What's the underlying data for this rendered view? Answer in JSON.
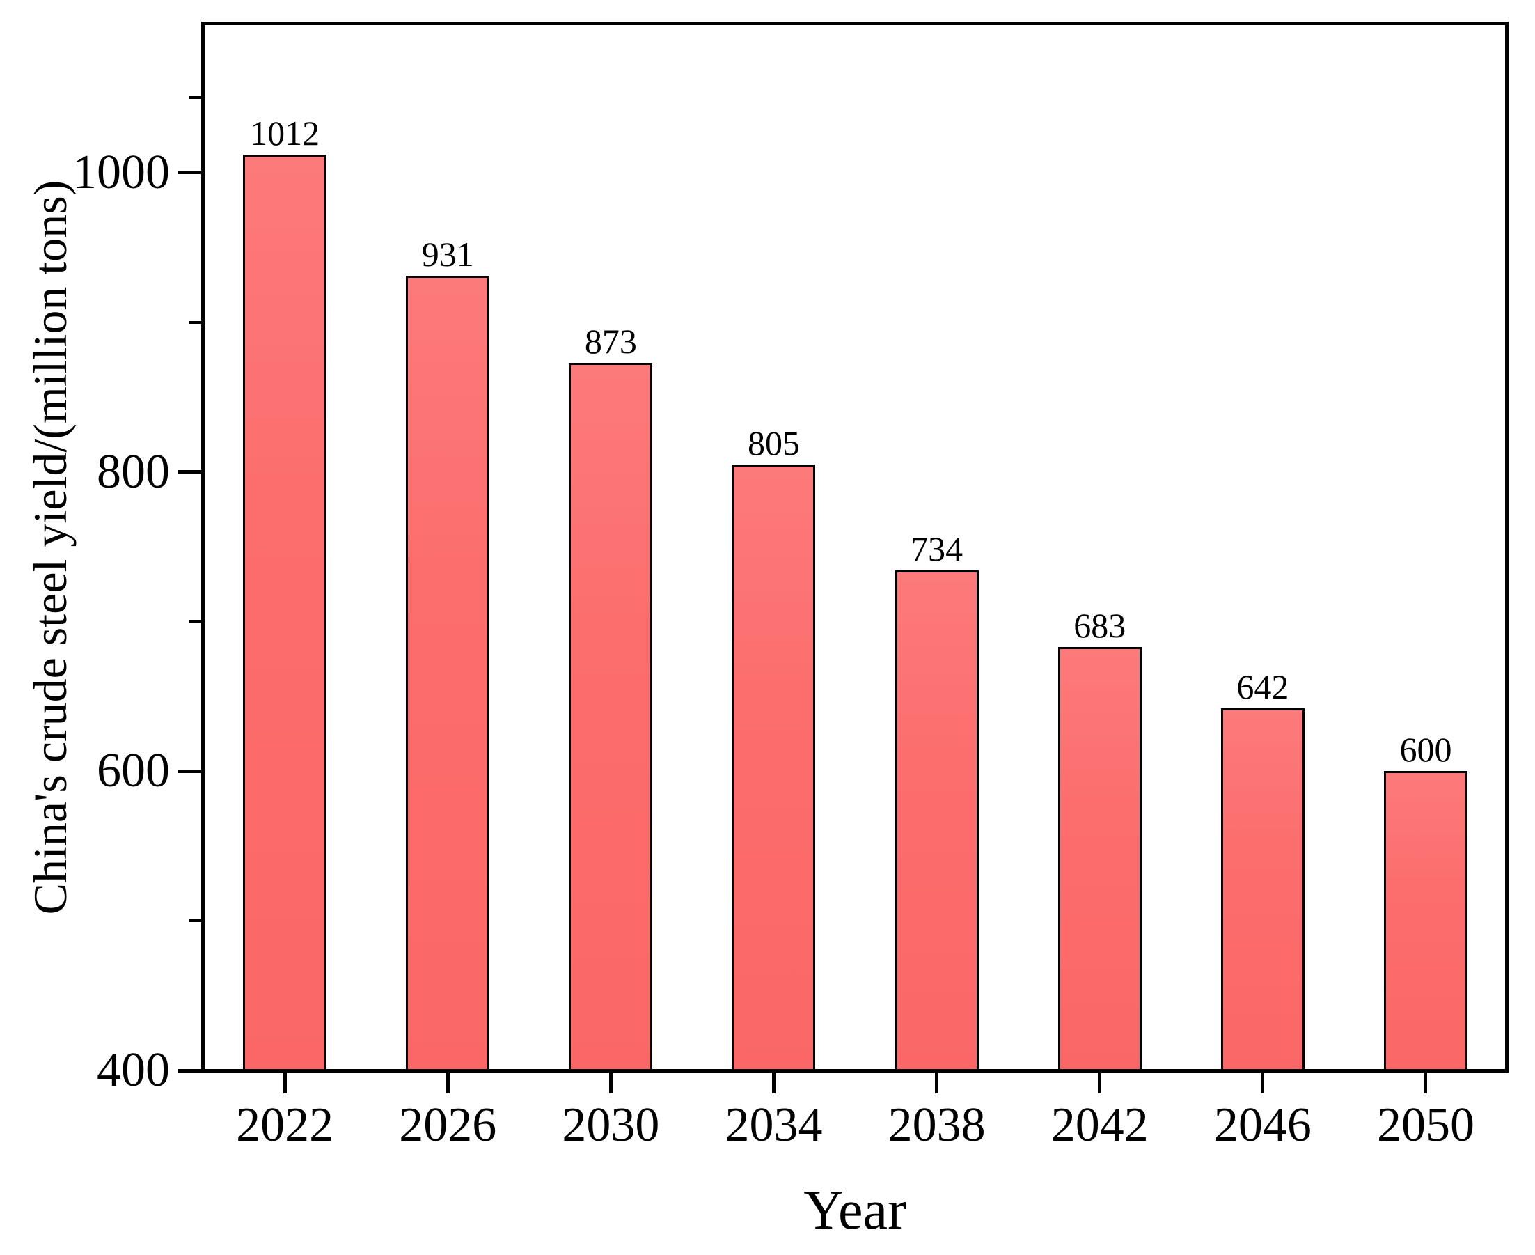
{
  "figure": {
    "background_color": "#ffffff",
    "axis_color": "#000000",
    "text_color": "#000000",
    "bar_fill_top": "#fd7a7a",
    "bar_fill_main": "#fc6d6d",
    "bar_fill_bottom": "#fb6767",
    "bar_border_color": "#000000"
  },
  "chart_data": {
    "type": "bar",
    "title": "",
    "categories": [
      "2022",
      "2026",
      "2030",
      "2034",
      "2038",
      "2042",
      "2046",
      "2050"
    ],
    "values": [
      1012,
      931,
      873,
      805,
      734,
      683,
      642,
      600
    ],
    "value_labels": [
      "1012",
      "931",
      "873",
      "805",
      "734",
      "683",
      "642",
      "600"
    ],
    "xlabel": "Year",
    "ylabel": "China's crude steel yield/(million tons)",
    "ylim": [
      400,
      1100
    ],
    "y_major_ticks": [
      400,
      600,
      800,
      1000
    ],
    "y_major_tick_labels": [
      "400",
      "600",
      "800",
      "1000"
    ],
    "y_minor_ticks": [
      500,
      700,
      900,
      1050
    ],
    "grid": false,
    "legend_position": "none",
    "value_labels_shown": true,
    "bar_color": "#fc6d6d"
  }
}
